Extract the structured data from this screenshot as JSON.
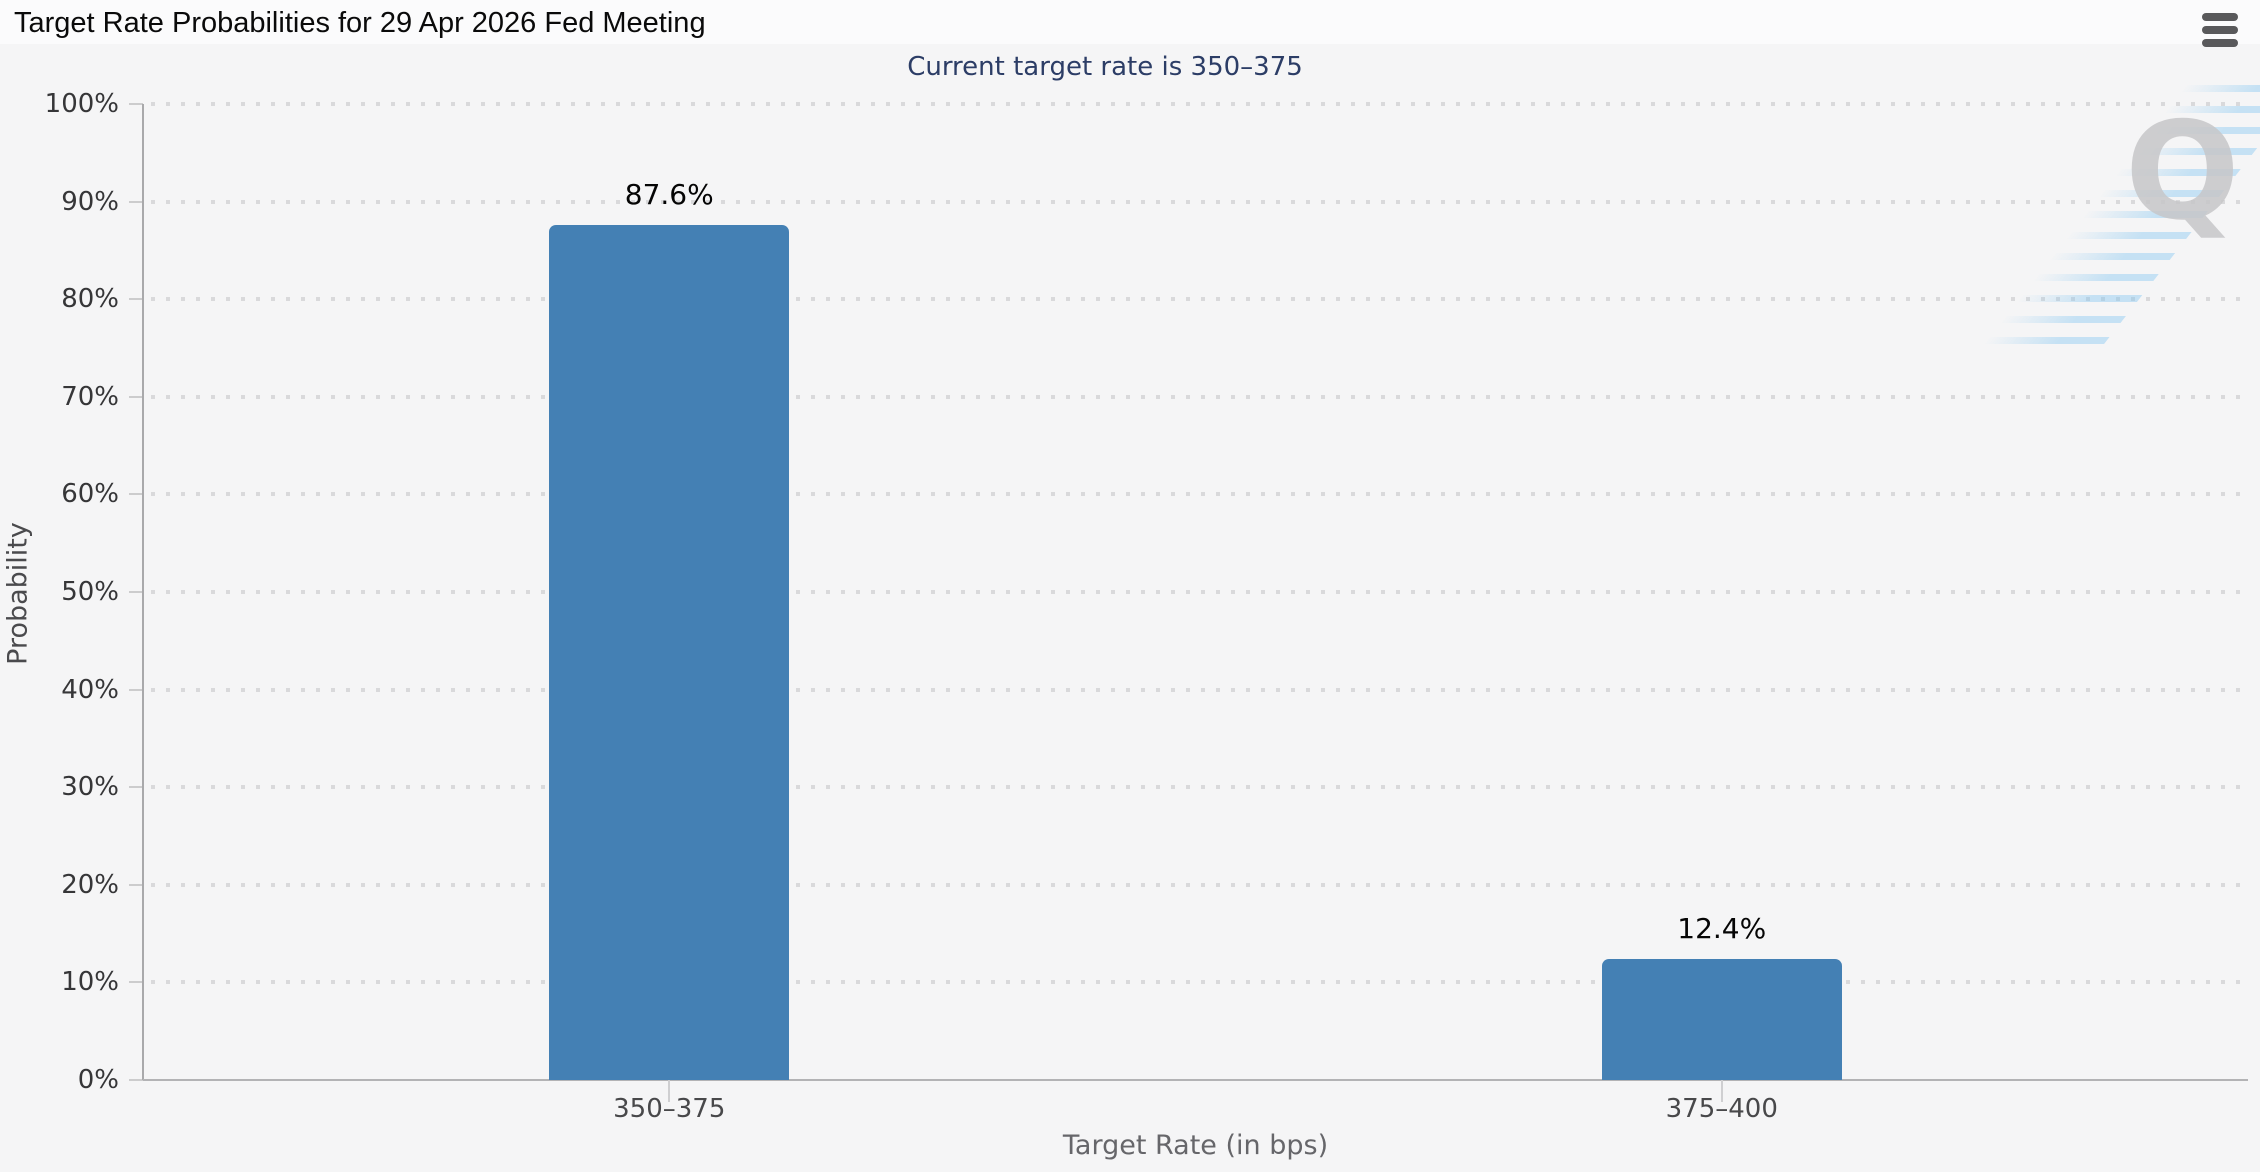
{
  "header": {
    "title": "Target Rate Probabilities for 29 Apr 2026 Fed Meeting"
  },
  "chart": {
    "subtitle": "Current target rate is 350–375",
    "xlabel": "Target Rate (in bps)",
    "ylabel": "Probability",
    "y_tick_labels": [
      "0%",
      "10%",
      "20%",
      "30%",
      "40%",
      "50%",
      "60%",
      "70%",
      "80%",
      "90%",
      "100%"
    ]
  },
  "watermark": {
    "letter": "Q"
  },
  "colors": {
    "bar": "#4480b4",
    "subtitle_text": "#2c3d66",
    "grid_dot": "#d9d9db",
    "axis_line": "#a9a9ab",
    "page_background": "#f5f5f6",
    "menu_icon": "#59595b"
  },
  "chart_data": {
    "type": "bar",
    "title": "Target Rate Probabilities for 29 Apr 2026 Fed Meeting",
    "subtitle": "Current target rate is 350–375",
    "categories": [
      "350–375",
      "375–400"
    ],
    "values": [
      87.6,
      12.4
    ],
    "value_labels": [
      "87.6%",
      "12.4%"
    ],
    "xlabel": "Target Rate (in bps)",
    "ylabel": "Probability",
    "ylim": [
      0,
      100
    ],
    "y_tick_step": 10,
    "grid": "horizontal dotted",
    "legend": "none",
    "bar_color": "#4480b4"
  }
}
